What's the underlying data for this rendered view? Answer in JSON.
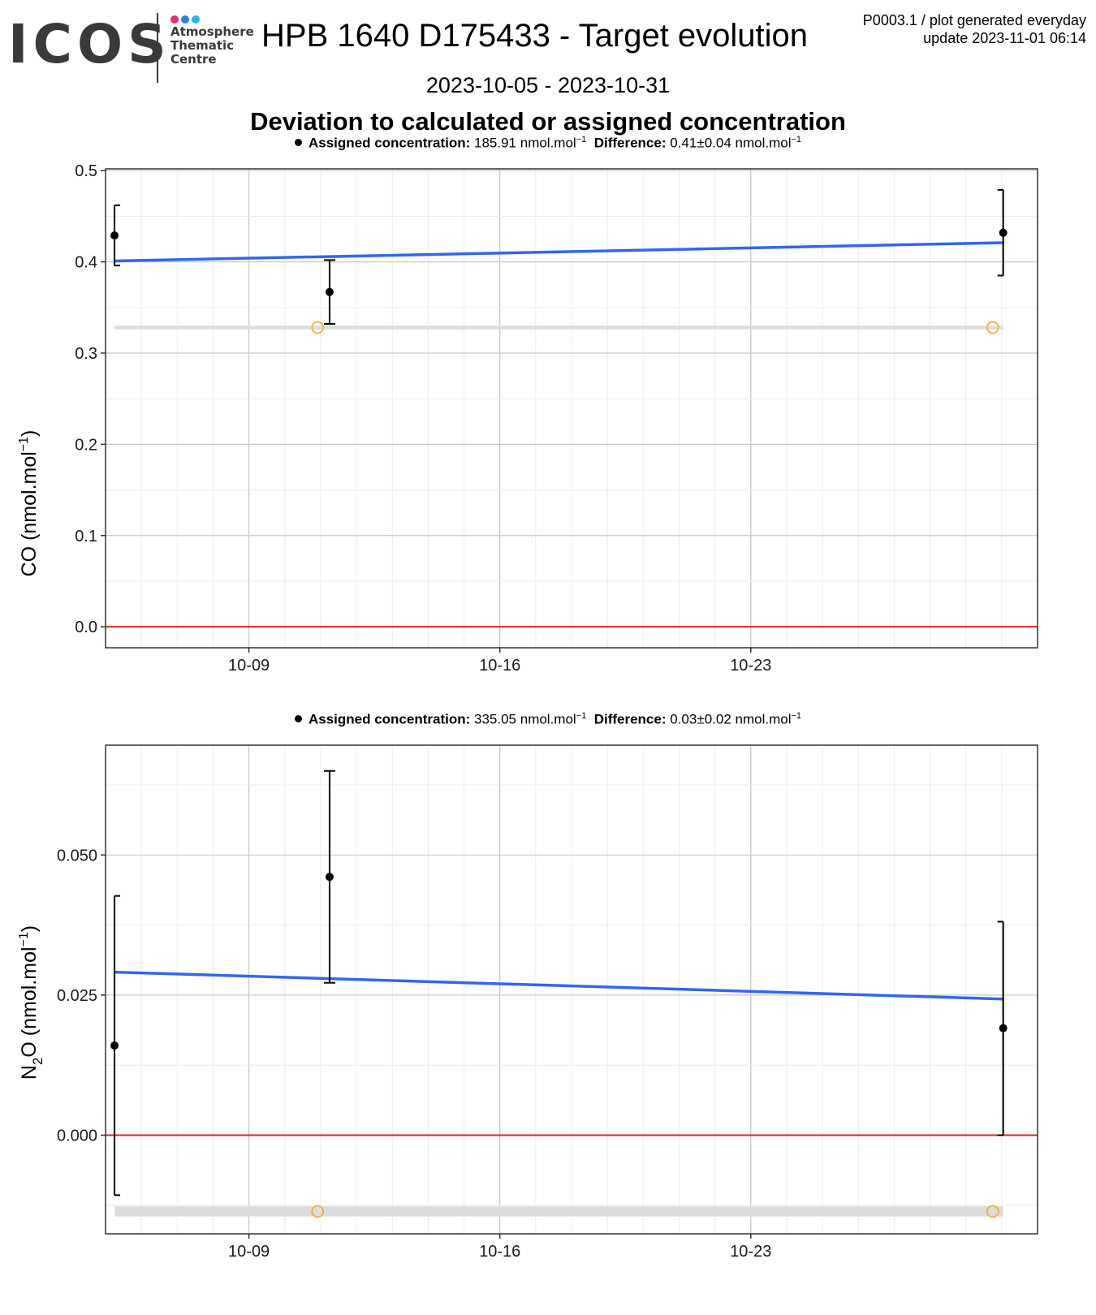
{
  "header": {
    "logo_text": "ICOS",
    "logo_lines": [
      "Atmosphere",
      "Thematic",
      "Centre"
    ],
    "logo_dot_colors": [
      "#e0306f",
      "#2f7fd8",
      "#29b3e6"
    ],
    "title": "HPB 1640 D175433 - Target evolution",
    "meta_line1": "P0003.1 / plot generated everyday",
    "meta_line2": "update  2023-11-01 06:14",
    "date_range": "2023-10-05 - 2023-10-31",
    "section_title": "Deviation to calculated or assigned concentration"
  },
  "colors": {
    "points": "#000000",
    "trend": "#3366ee",
    "zero_line": "#e8211e",
    "reference_band": "#dcdcdc",
    "reference_points": "#f5a623",
    "grid_major": "#c8c8c8",
    "grid_minor": "#ececec"
  },
  "chart_data": [
    {
      "type": "scatter",
      "gas": "CO",
      "caption": {
        "assigned_label": "Assigned concentration:",
        "assigned_value": "185.91 nmol.mol",
        "difference_label": "Difference:",
        "difference_value": "0.41",
        "difference_pm": "0.04",
        "difference_unit": "nmol.mol",
        "unit_exponent": "−1"
      },
      "ylabel": "CO (nmol.mol",
      "ylabel_suffix": "−1",
      "ylabel_end": ")",
      "xlim": [
        "2023-10-05",
        "2023-10-31"
      ],
      "ylim": [
        -0.023,
        0.502
      ],
      "x_ticks": [
        "10-09",
        "10-16",
        "10-23"
      ],
      "y_ticks": [
        0.0,
        0.1,
        0.2,
        0.3,
        0.4,
        0.5
      ],
      "y_tick_labels": [
        "0.0",
        "0.1",
        "0.2",
        "0.3",
        "0.4",
        "0.5"
      ],
      "points": [
        {
          "x": "2023-10-05 06:00",
          "y": 0.429,
          "ymin": 0.396,
          "ymax": 0.462
        },
        {
          "x": "2023-10-11 06:00",
          "y": 0.367,
          "ymin": 0.332,
          "ymax": 0.402
        },
        {
          "x": "2023-10-30 01:00",
          "y": 0.432,
          "ymin": 0.385,
          "ymax": 0.479
        }
      ],
      "trend": [
        {
          "x": "2023-10-05 06:00",
          "y": 0.401
        },
        {
          "x": "2023-10-30 01:00",
          "y": 0.421
        }
      ],
      "reference_level": 0.328,
      "reference_band": [
        0.326,
        0.33
      ],
      "reference_points": [
        {
          "x": "2023-10-10 22:00",
          "y": 0.328
        },
        {
          "x": "2023-10-29 18:00",
          "y": 0.328
        }
      ]
    },
    {
      "type": "scatter",
      "gas": "N2O",
      "caption": {
        "assigned_label": "Assigned concentration:",
        "assigned_value": "335.05 nmol.mol",
        "difference_label": "Difference:",
        "difference_value": "0.03",
        "difference_pm": "0.02",
        "difference_unit": "nmol.mol",
        "unit_exponent": "−1"
      },
      "ylabel": "N",
      "ylabel_sub": "2",
      "ylabel_mid": "O (nmol.mol",
      "ylabel_suffix": "−1",
      "ylabel_end": ")",
      "xlim": [
        "2023-10-05",
        "2023-10-31"
      ],
      "ylim": [
        -0.0176,
        0.0696
      ],
      "x_ticks": [
        "10-09",
        "10-16",
        "10-23"
      ],
      "y_ticks": [
        0.0,
        0.025,
        0.05
      ],
      "y_tick_labels": [
        "0.000",
        "0.025",
        "0.050"
      ],
      "points": [
        {
          "x": "2023-10-05 06:00",
          "y": 0.016,
          "ymin": -0.0107,
          "ymax": 0.0427
        },
        {
          "x": "2023-10-11 06:00",
          "y": 0.0461,
          "ymin": 0.0272,
          "ymax": 0.065
        },
        {
          "x": "2023-10-30 01:00",
          "y": 0.0191,
          "ymin": 0.0,
          "ymax": 0.0381
        }
      ],
      "trend": [
        {
          "x": "2023-10-05 06:00",
          "y": 0.0291
        },
        {
          "x": "2023-10-30 01:00",
          "y": 0.0243
        }
      ],
      "reference_level": -0.0136,
      "reference_band": [
        -0.0145,
        -0.0127
      ],
      "reference_points": [
        {
          "x": "2023-10-10 22:00",
          "y": -0.0136
        },
        {
          "x": "2023-10-29 18:00",
          "y": -0.0136
        }
      ]
    }
  ]
}
